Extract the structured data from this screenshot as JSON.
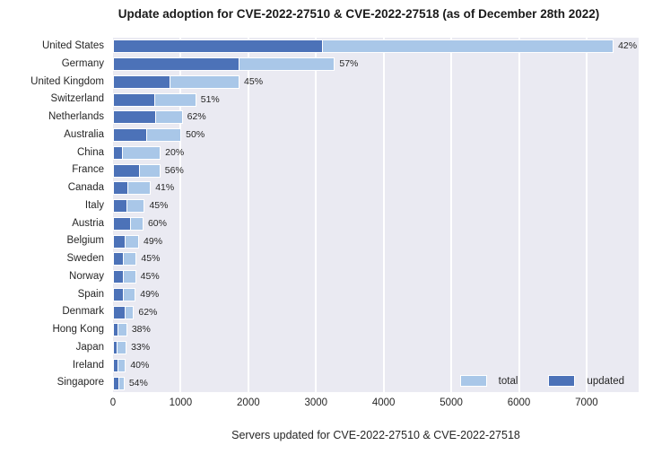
{
  "title": "Update adoption for CVE-2022-27510 & CVE-2022-27518 (as of December 28th 2022)",
  "colors": {
    "total_bar": "#a9c7e8",
    "updated_bar": "#4c72b8",
    "plot_background": "#eaeaf2",
    "gridline": "#ffffff",
    "text": "#262626"
  },
  "chart_data": {
    "type": "bar",
    "orientation": "horizontal",
    "title": "Update adoption for CVE-2022-27510 & CVE-2022-27518 (as of December 28th 2022)",
    "xlabel": "Servers updated for CVE-2022-27510 & CVE-2022-27518",
    "ylabel": "",
    "xlim": [
      0,
      7770
    ],
    "xticks": [
      0,
      1000,
      2000,
      3000,
      4000,
      5000,
      6000,
      7000
    ],
    "grid": true,
    "categories": [
      "United States",
      "Germany",
      "United Kingdom",
      "Switzerland",
      "Netherlands",
      "Australia",
      "China",
      "France",
      "Canada",
      "Italy",
      "Austria",
      "Belgium",
      "Sweden",
      "Norway",
      "Spain",
      "Denmark",
      "Hong Kong",
      "Japan",
      "Ireland",
      "Singapore"
    ],
    "series": [
      {
        "name": "total",
        "color": "#a9c7e8",
        "values": [
          7400,
          3280,
          1870,
          1230,
          1030,
          1010,
          705,
          700,
          560,
          470,
          450,
          385,
          350,
          340,
          335,
          310,
          210,
          200,
          190,
          170
        ]
      },
      {
        "name": "updated",
        "color": "#4c72b8",
        "values": [
          3108,
          1870,
          842,
          627,
          639,
          505,
          141,
          392,
          230,
          212,
          270,
          189,
          158,
          153,
          164,
          192,
          80,
          66,
          76,
          92
        ]
      }
    ],
    "bar_labels": [
      "42%",
      "57%",
      "45%",
      "51%",
      "62%",
      "50%",
      "20%",
      "56%",
      "41%",
      "45%",
      "60%",
      "49%",
      "45%",
      "45%",
      "49%",
      "62%",
      "38%",
      "33%",
      "40%",
      "54%"
    ],
    "legend": {
      "position": "lower right",
      "entries": [
        {
          "label": "total",
          "color": "#a9c7e8"
        },
        {
          "label": "updated",
          "color": "#4c72b8"
        }
      ]
    }
  }
}
